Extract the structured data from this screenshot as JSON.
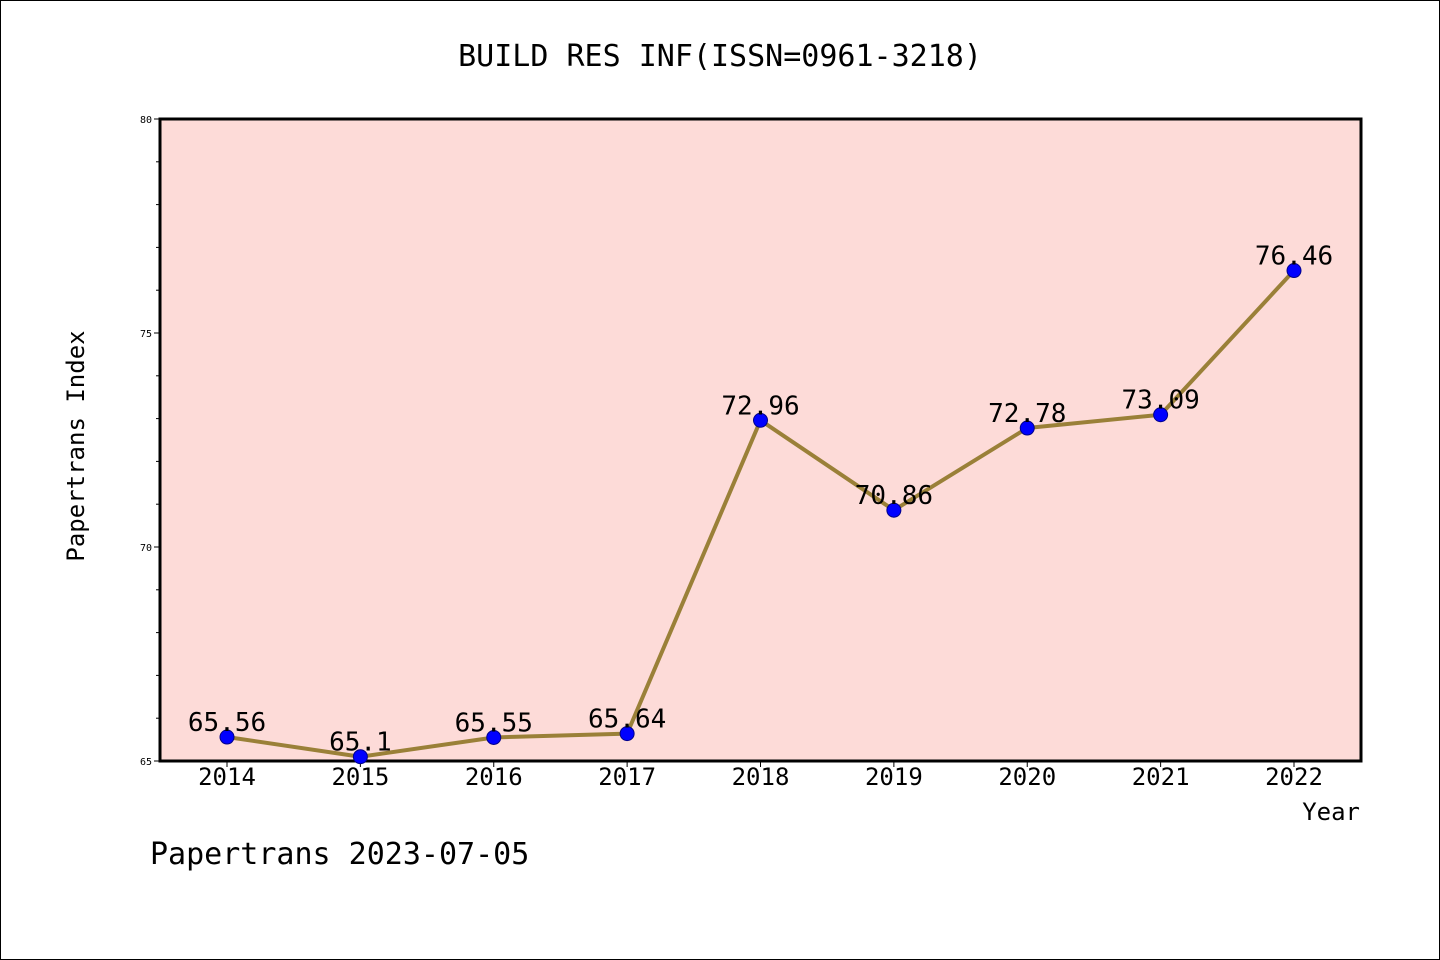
{
  "chart_data": {
    "type": "line",
    "title": "BUILD RES INF(ISSN=0961-3218)",
    "xlabel": "Year",
    "ylabel": "Papertrans Index",
    "categories": [
      "2014",
      "2015",
      "2016",
      "2017",
      "2018",
      "2019",
      "2020",
      "2021",
      "2022"
    ],
    "series": [
      {
        "values": [
          65.56,
          65.1,
          65.55,
          65.64,
          72.96,
          70.86,
          72.78,
          73.09,
          76.46
        ],
        "labels": [
          "65.56",
          "65.1",
          "65.55",
          "65.64",
          "72.96",
          "70.86",
          "72.78",
          "73.09",
          "76.46"
        ]
      }
    ],
    "ylim": [
      65,
      80
    ],
    "yticks": [
      "65",
      "70",
      "75",
      "80"
    ],
    "grid": false,
    "colors": {
      "plot_background": "#fddbd8",
      "line": "#9a8038",
      "marker": "#0000ff"
    }
  },
  "footer": "Papertrans 2023-07-05"
}
